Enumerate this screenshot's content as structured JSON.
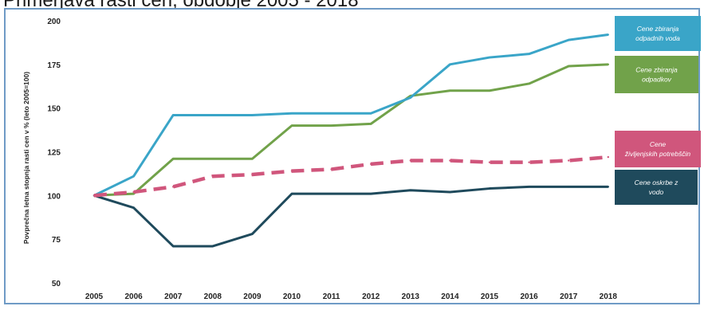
{
  "title": "Primerjava rasti cen, obdobje 2005 - 2018",
  "chart_data": {
    "type": "line",
    "ylabel": "Povprečna letna stopnja rasti cen v % (leto 2005=100)",
    "xlabel": "",
    "ylim": [
      50,
      200
    ],
    "yticks": [
      50,
      75,
      100,
      125,
      150,
      175,
      200
    ],
    "categories": [
      "2005",
      "2006",
      "2007",
      "2008",
      "2009",
      "2010",
      "2011",
      "2012",
      "2013",
      "2014",
      "2015",
      "2016",
      "2017",
      "2018"
    ],
    "legend_position": "right",
    "grid": false,
    "series": [
      {
        "name": "Cene zbiranja odpadnih voda",
        "color": "#3aa5c8",
        "style": "solid",
        "values": [
          100,
          111,
          146,
          146,
          146,
          147,
          147,
          147,
          156,
          175,
          179,
          181,
          189,
          192
        ]
      },
      {
        "name": "Cene zbiranja odpadkov",
        "color": "#71a24a",
        "style": "solid",
        "values": [
          100,
          101,
          121,
          121,
          121,
          140,
          140,
          141,
          157,
          160,
          160,
          164,
          174,
          175
        ]
      },
      {
        "name": "Cene življenjskih potrebščin",
        "color": "#d0567c",
        "style": "dashed",
        "values": [
          100,
          102,
          105,
          111,
          112,
          114,
          115,
          118,
          120,
          120,
          119,
          119,
          120,
          122
        ]
      },
      {
        "name": "Cene oskrbe z vodo",
        "color": "#1f4a5c",
        "style": "solid",
        "values": [
          100,
          93,
          71,
          71,
          78,
          101,
          101,
          101,
          103,
          102,
          104,
          105,
          105,
          105
        ]
      }
    ]
  }
}
